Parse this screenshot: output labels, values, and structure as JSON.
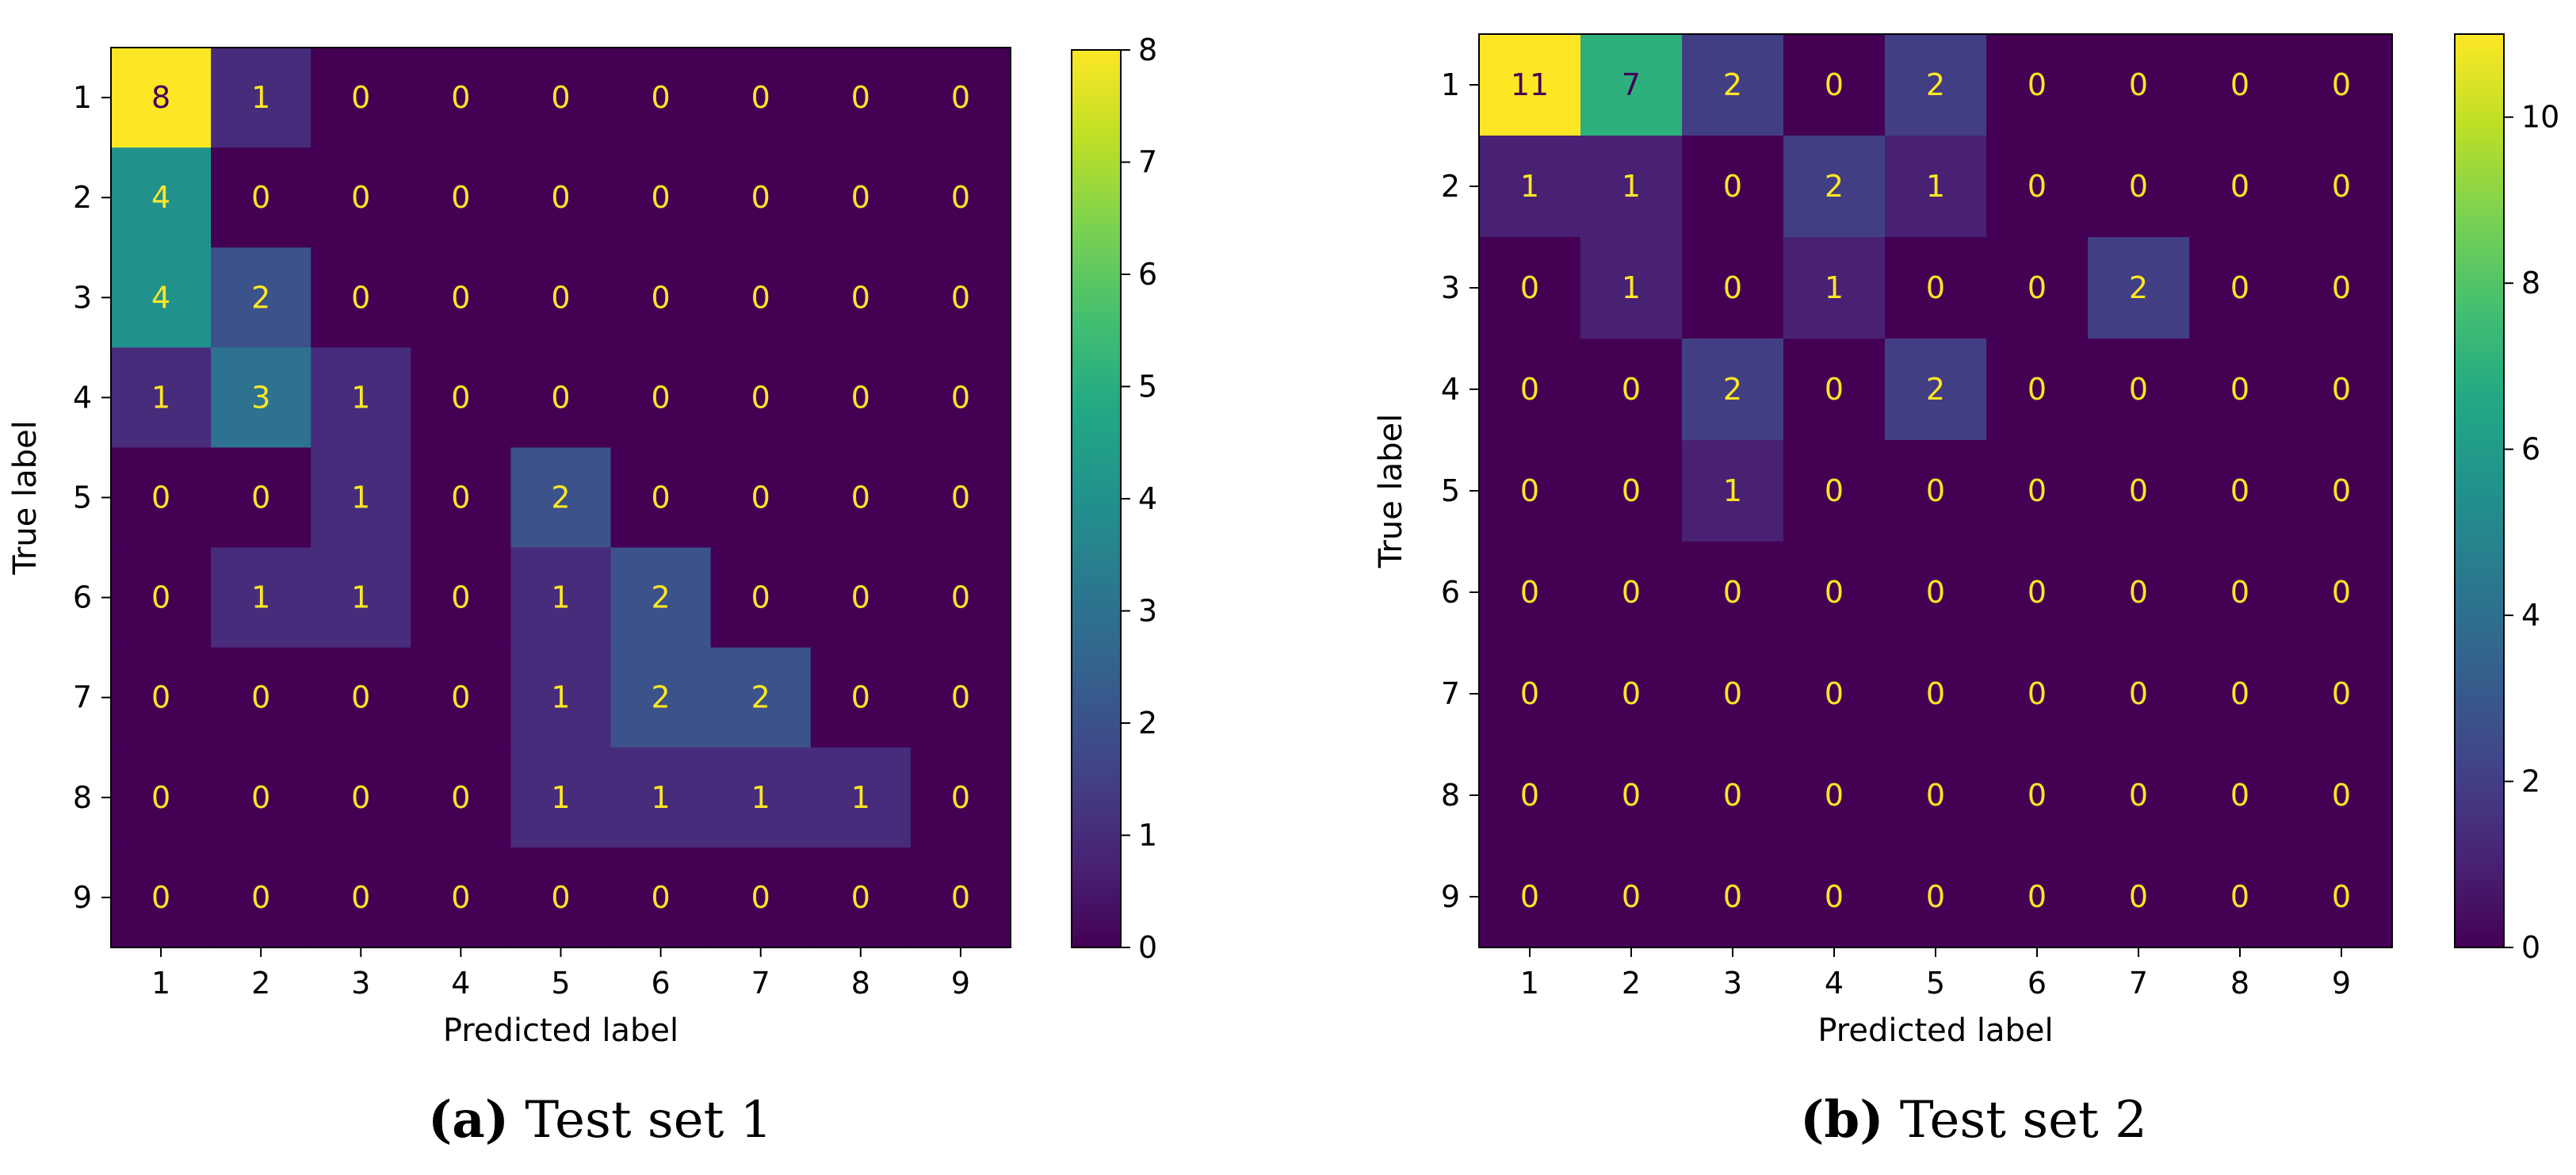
{
  "chart_data": [
    {
      "type": "heatmap",
      "title": "",
      "xlabel": "Predicted label",
      "ylabel": "True label",
      "x_ticks": [
        "1",
        "2",
        "3",
        "4",
        "5",
        "6",
        "7",
        "8",
        "9"
      ],
      "y_ticks": [
        "1",
        "2",
        "3",
        "4",
        "5",
        "6",
        "7",
        "8",
        "9"
      ],
      "matrix": [
        [
          8,
          1,
          0,
          0,
          0,
          0,
          0,
          0,
          0
        ],
        [
          4,
          0,
          0,
          0,
          0,
          0,
          0,
          0,
          0
        ],
        [
          4,
          2,
          0,
          0,
          0,
          0,
          0,
          0,
          0
        ],
        [
          1,
          3,
          1,
          0,
          0,
          0,
          0,
          0,
          0
        ],
        [
          0,
          0,
          1,
          0,
          2,
          0,
          0,
          0,
          0
        ],
        [
          0,
          1,
          1,
          0,
          1,
          2,
          0,
          0,
          0
        ],
        [
          0,
          0,
          0,
          0,
          1,
          2,
          2,
          0,
          0
        ],
        [
          0,
          0,
          0,
          0,
          1,
          1,
          1,
          1,
          0
        ],
        [
          0,
          0,
          0,
          0,
          0,
          0,
          0,
          0,
          0
        ]
      ],
      "colorbar": {
        "range": [
          0,
          8
        ],
        "ticks": [
          "0",
          "1",
          "2",
          "3",
          "4",
          "5",
          "6",
          "7",
          "8"
        ],
        "colormap": "viridis"
      },
      "caption_letter": "(a)",
      "caption_text": " Test set 1"
    },
    {
      "type": "heatmap",
      "title": "",
      "xlabel": "Predicted label",
      "ylabel": "True label",
      "x_ticks": [
        "1",
        "2",
        "3",
        "4",
        "5",
        "6",
        "7",
        "8",
        "9"
      ],
      "y_ticks": [
        "1",
        "2",
        "3",
        "4",
        "5",
        "6",
        "7",
        "8",
        "9"
      ],
      "matrix": [
        [
          11,
          7,
          2,
          0,
          2,
          0,
          0,
          0,
          0
        ],
        [
          1,
          1,
          0,
          2,
          1,
          0,
          0,
          0,
          0
        ],
        [
          0,
          1,
          0,
          1,
          0,
          0,
          2,
          0,
          0
        ],
        [
          0,
          0,
          2,
          0,
          2,
          0,
          0,
          0,
          0
        ],
        [
          0,
          0,
          1,
          0,
          0,
          0,
          0,
          0,
          0
        ],
        [
          0,
          0,
          0,
          0,
          0,
          0,
          0,
          0,
          0
        ],
        [
          0,
          0,
          0,
          0,
          0,
          0,
          0,
          0,
          0
        ],
        [
          0,
          0,
          0,
          0,
          0,
          0,
          0,
          0,
          0
        ],
        [
          0,
          0,
          0,
          0,
          0,
          0,
          0,
          0,
          0
        ]
      ],
      "colorbar": {
        "range": [
          0,
          11
        ],
        "ticks": [
          "0",
          "2",
          "4",
          "6",
          "8",
          "10"
        ],
        "colormap": "viridis"
      },
      "caption_letter": "(b)",
      "caption_text": " Test set 2"
    }
  ],
  "colors": {
    "viridis_low": "#440154",
    "viridis_high": "#fde725",
    "text_on_dark": "#fde725",
    "text_on_light": "#440154"
  }
}
